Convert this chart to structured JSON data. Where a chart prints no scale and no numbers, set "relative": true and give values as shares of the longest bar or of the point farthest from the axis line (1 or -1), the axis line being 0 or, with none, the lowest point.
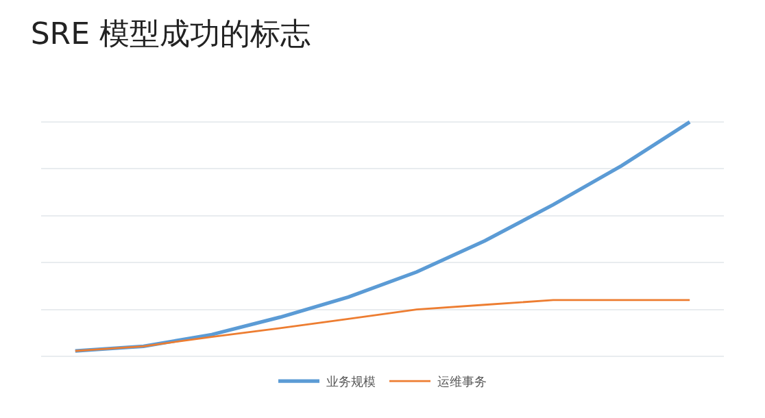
{
  "chart_data": {
    "type": "line",
    "title": "SRE 模型成功的标志",
    "relative": true,
    "grid": "y",
    "legend": "bottom",
    "categories": [
      null,
      null,
      null,
      null,
      null,
      null,
      null,
      null,
      null,
      null
    ],
    "series": [
      {
        "name": "业务规模",
        "color": "#5b9bd5",
        "values": [
          0.023,
          0.043,
          0.093,
          0.167,
          0.253,
          0.36,
          0.493,
          0.647,
          0.813,
          1
        ]
      },
      {
        "name": "运维事务",
        "color": "#ed7d31",
        "values": [
          0.023,
          0.043,
          0.083,
          0.12,
          0.16,
          0.2,
          0.22,
          0.24,
          0.24,
          0.24
        ]
      }
    ]
  }
}
